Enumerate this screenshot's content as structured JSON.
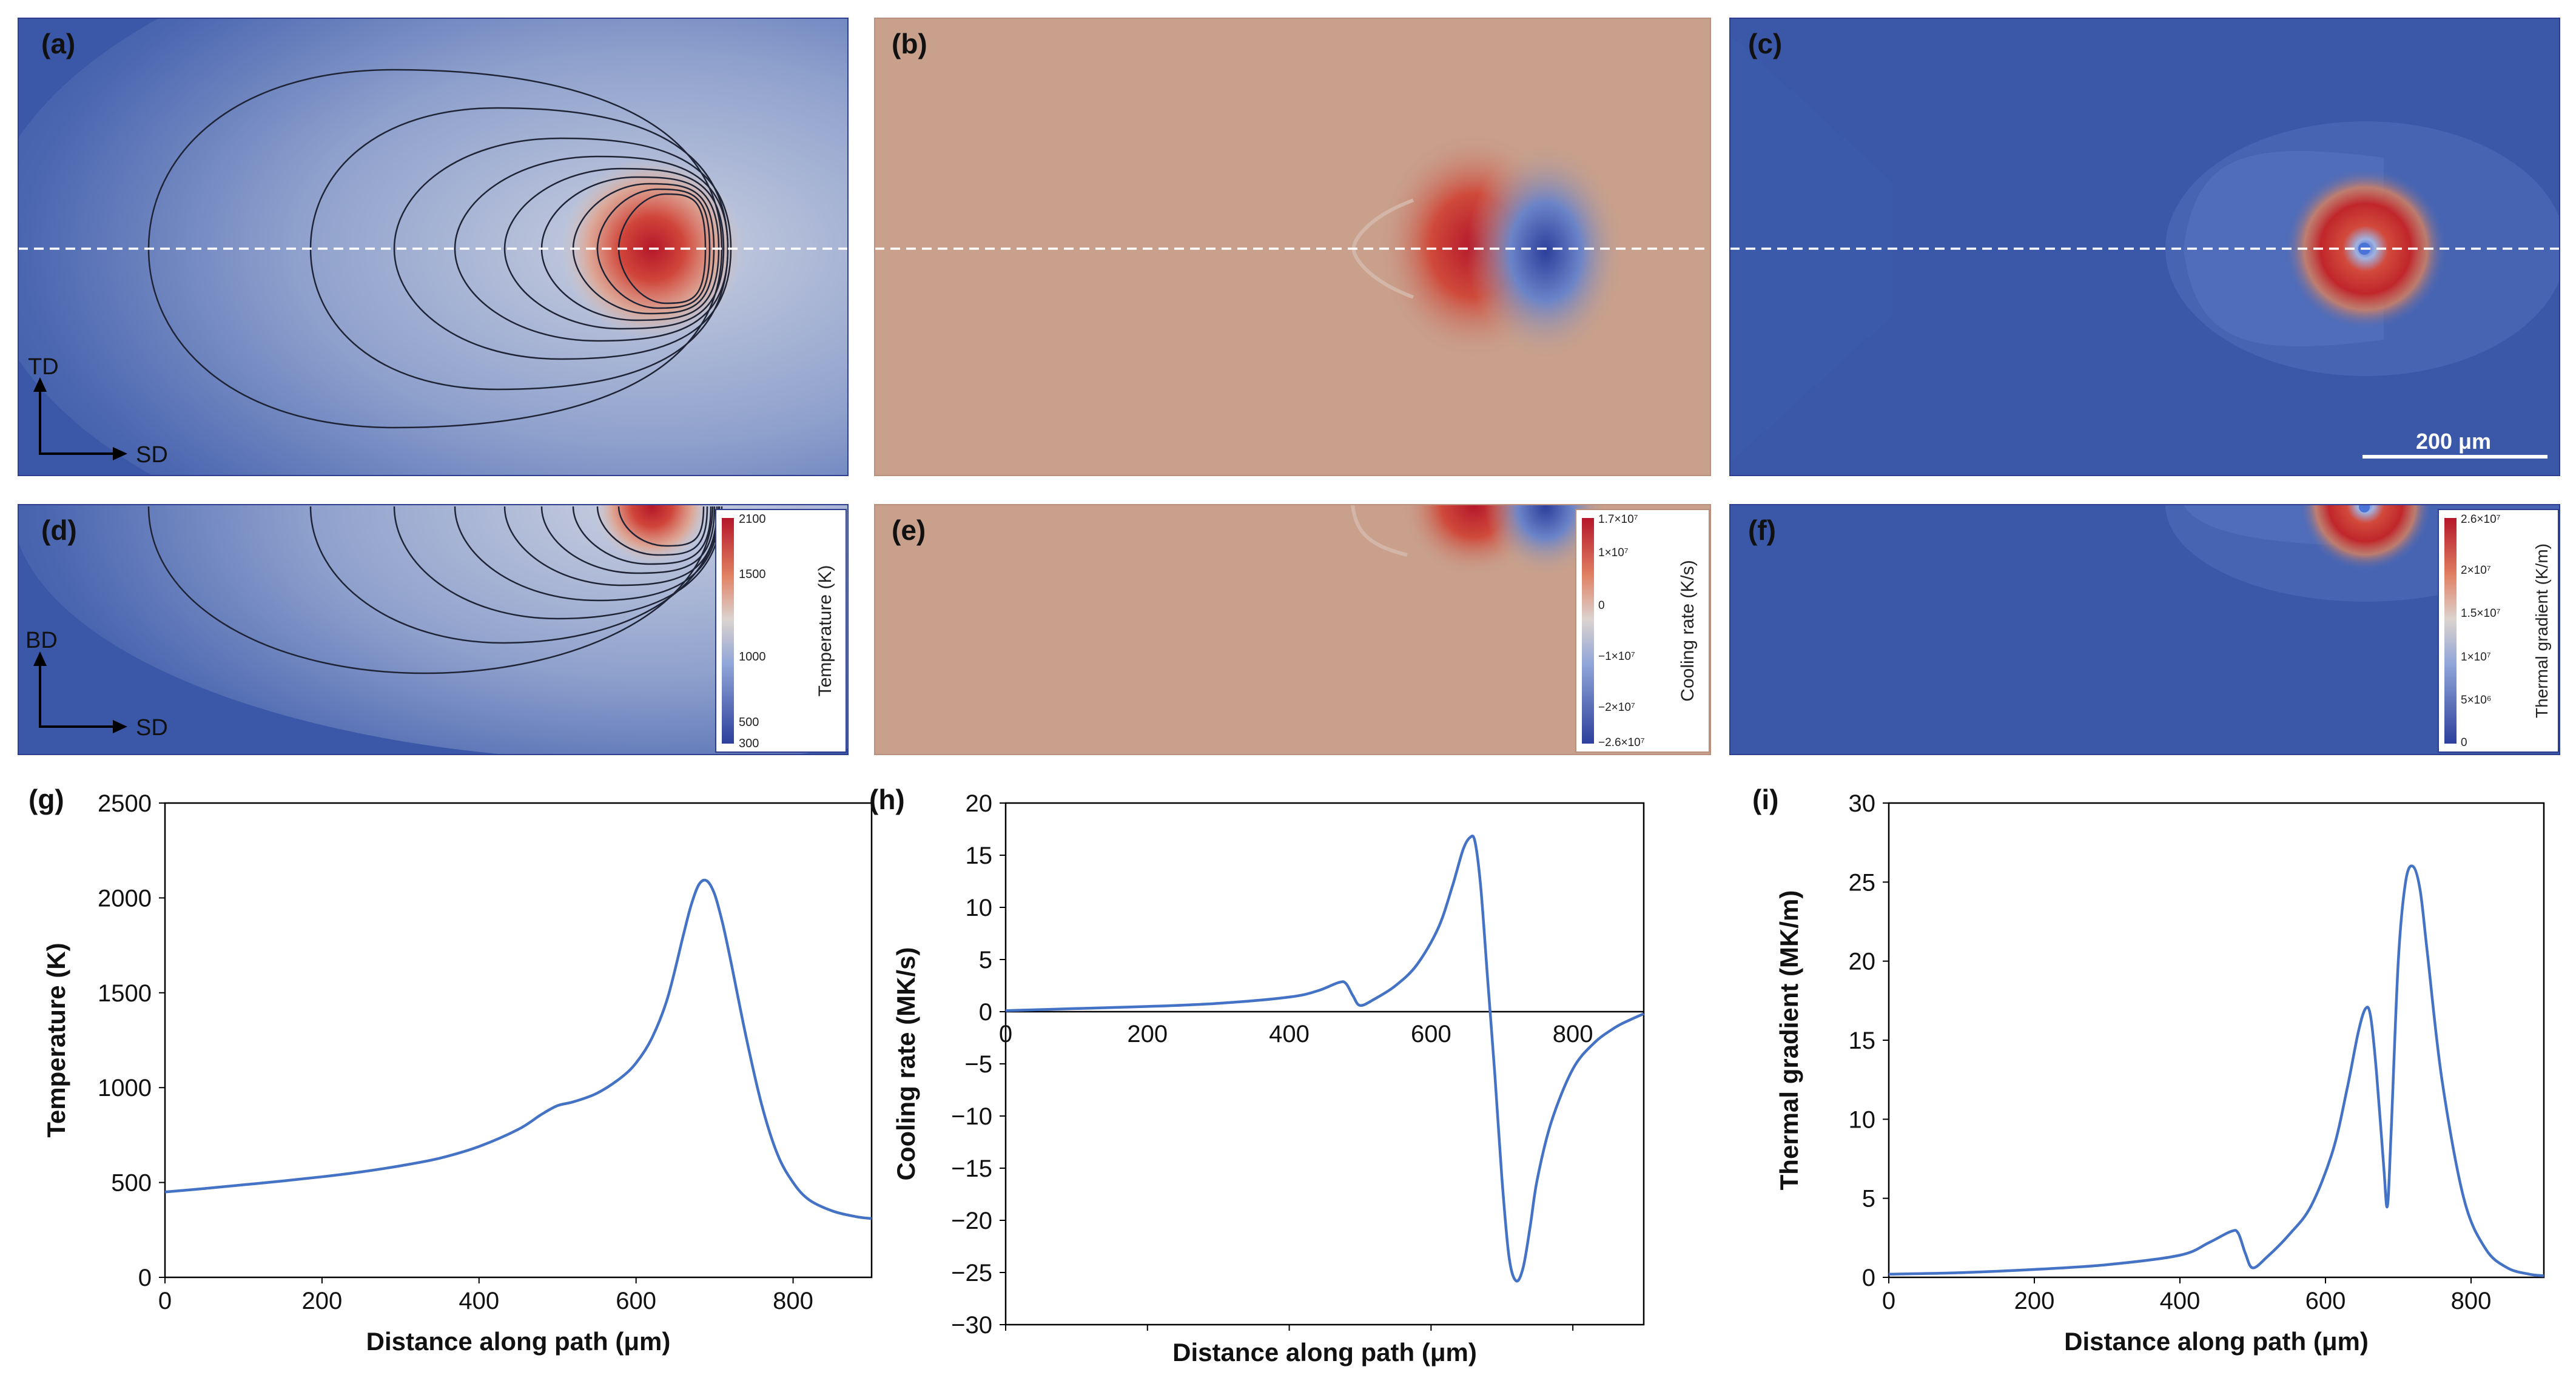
{
  "panels": {
    "a": {
      "label": "(a)",
      "dir_v": "TD",
      "dir_h": "SD"
    },
    "b": {
      "label": "(b)"
    },
    "c": {
      "label": "(c)",
      "scale_bar": "200 μm"
    },
    "d": {
      "label": "(d)",
      "dir_v": "BD",
      "dir_h": "SD",
      "colorbar_title": "Temperature (K)",
      "colorbar_ticks": [
        "2100",
        "1500",
        "1000",
        "500",
        "300"
      ]
    },
    "e": {
      "label": "(e)",
      "colorbar_title": "Cooling rate (K/s)",
      "colorbar_ticks": [
        "1.7×10⁷",
        "1×10⁷",
        "0",
        "−1×10⁷",
        "−2×10⁷",
        "−2.6×10⁷"
      ]
    },
    "f": {
      "label": "(f)",
      "colorbar_title": "Thermal  gradient  (K/m)",
      "colorbar_ticks": [
        "2.6×10⁷",
        "2×10⁷",
        "1.5×10⁷",
        "1×10⁷",
        "5×10⁶",
        "0"
      ]
    }
  },
  "colors": {
    "line": "#4472c4",
    "map_blue": "#3b58a8",
    "map_red": "#b5172a",
    "map_tan": "#c8a08c",
    "contour": "#1e2436"
  },
  "chart_data": [
    {
      "panel_label": "(g)",
      "type": "line",
      "title": "",
      "xlabel": "Distance along path (μm)",
      "ylabel": "Temperature (K)",
      "xlim": [
        0,
        900
      ],
      "ylim": [
        0,
        2500
      ],
      "xticks": [
        0,
        200,
        400,
        600,
        800
      ],
      "yticks": [
        0,
        500,
        1000,
        1500,
        2000,
        2500
      ],
      "xtick_labels": [
        "0",
        "200",
        "400",
        "600",
        "800"
      ],
      "ytick_labels": [
        "0",
        "500",
        "1000",
        "1500",
        "2000",
        "2500"
      ],
      "series": [
        {
          "name": "Temperature",
          "x": [
            0,
            50,
            100,
            150,
            200,
            250,
            300,
            350,
            400,
            450,
            480,
            500,
            520,
            550,
            580,
            600,
            620,
            640,
            660,
            670,
            680,
            690,
            700,
            710,
            720,
            740,
            760,
            780,
            800,
            820,
            850,
            880,
            900
          ],
          "y": [
            450,
            468,
            488,
            508,
            530,
            556,
            588,
            628,
            690,
            780,
            860,
            905,
            925,
            970,
            1050,
            1130,
            1260,
            1470,
            1800,
            1960,
            2070,
            2090,
            2020,
            1870,
            1680,
            1270,
            910,
            650,
            500,
            410,
            350,
            320,
            310
          ]
        }
      ]
    },
    {
      "panel_label": "(h)",
      "type": "line",
      "title": "",
      "xlabel": "Distance along path (μm)",
      "ylabel": "Cooling rate (MK/s)",
      "xlim": [
        0,
        900
      ],
      "ylim": [
        -30,
        20
      ],
      "xticks": [
        0,
        200,
        400,
        600,
        800
      ],
      "yticks": [
        -30,
        -25,
        -20,
        -15,
        -10,
        -5,
        0,
        5,
        10,
        15,
        20
      ],
      "xtick_labels": [
        "0",
        "200",
        "400",
        "600",
        "800"
      ],
      "ytick_labels": [
        "−30",
        "−25",
        "−20",
        "−15",
        "−10",
        "−5",
        "0",
        "5",
        "10",
        "15",
        "20"
      ],
      "series": [
        {
          "name": "Cooling rate",
          "x": [
            0,
            100,
            200,
            300,
            400,
            440,
            470,
            480,
            490,
            500,
            520,
            550,
            580,
            610,
            630,
            645,
            655,
            662,
            670,
            680,
            690,
            700,
            710,
            720,
            730,
            740,
            750,
            770,
            800,
            830,
            860,
            880,
            900
          ],
          "y": [
            0.1,
            0.3,
            0.5,
            0.8,
            1.4,
            2.0,
            2.8,
            2.7,
            1.5,
            0.6,
            1.2,
            2.5,
            4.5,
            8.0,
            12.0,
            15.5,
            16.7,
            16.3,
            12.0,
            3.0,
            -6.0,
            -16.0,
            -23.5,
            -25.8,
            -24.5,
            -20.5,
            -16.0,
            -10.5,
            -5.5,
            -3.0,
            -1.5,
            -0.8,
            -0.2
          ]
        }
      ]
    },
    {
      "panel_label": "(i)",
      "type": "line",
      "title": "",
      "xlabel": "Distance along path (μm)",
      "ylabel": "Thermal gradient (MK/m)",
      "xlim": [
        0,
        900
      ],
      "ylim": [
        0,
        30
      ],
      "xticks": [
        0,
        200,
        400,
        600,
        800
      ],
      "yticks": [
        0,
        5,
        10,
        15,
        20,
        25,
        30
      ],
      "xtick_labels": [
        "0",
        "200",
        "400",
        "600",
        "800"
      ],
      "ytick_labels": [
        "0",
        "5",
        "10",
        "15",
        "20",
        "25",
        "30"
      ],
      "series": [
        {
          "name": "Thermal gradient",
          "x": [
            0,
            100,
            200,
            300,
            400,
            440,
            470,
            480,
            490,
            500,
            520,
            550,
            580,
            610,
            630,
            645,
            655,
            662,
            670,
            680,
            685,
            690,
            700,
            710,
            720,
            730,
            740,
            760,
            790,
            820,
            850,
            880,
            900
          ],
          "y": [
            0.2,
            0.3,
            0.5,
            0.8,
            1.4,
            2.2,
            2.9,
            2.8,
            1.5,
            0.6,
            1.3,
            2.7,
            4.5,
            8.0,
            12.0,
            15.5,
            17.0,
            16.5,
            13.0,
            7.0,
            4.5,
            9.0,
            20.0,
            25.0,
            26.0,
            24.5,
            20.5,
            12.5,
            5.0,
            1.8,
            0.6,
            0.2,
            0.1
          ]
        }
      ]
    }
  ]
}
